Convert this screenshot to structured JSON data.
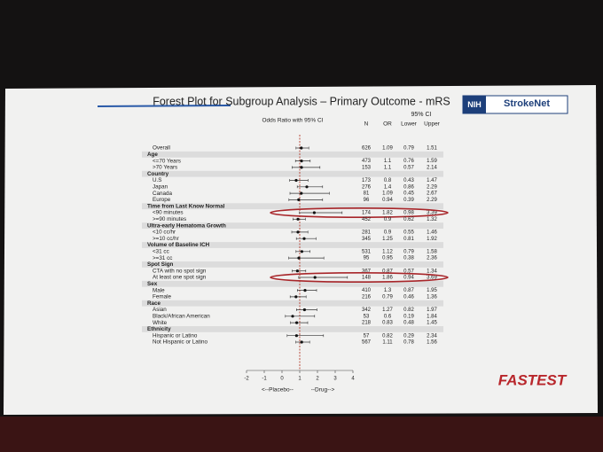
{
  "chart_data": {
    "type": "forest",
    "title": "Forest Plot for Subgroup Analysis – Primary Outcome - mRS",
    "axis_title": "Odds Ratio with 95% CI",
    "column_headers": {
      "n": "N",
      "or": "OR",
      "ci": "95% CI",
      "lower": "Lower",
      "upper": "Upper"
    },
    "x_left_label": "<--Placebo--",
    "x_right_label": "--Drug-->",
    "xlim": [
      -2,
      4
    ],
    "xticks": [
      -2,
      -1,
      0,
      1,
      2,
      3,
      4
    ],
    "reference_line": 1,
    "rows": [
      {
        "label": "Overall",
        "n": 626,
        "or": 1.09,
        "lower": 0.79,
        "upper": 1.51
      },
      {
        "label": "Age"
      },
      {
        "label": "<=70 Years",
        "n": 473,
        "or": 1.1,
        "lower": 0.76,
        "upper": 1.59
      },
      {
        "label": ">70 Years",
        "n": 153,
        "or": 1.1,
        "lower": 0.57,
        "upper": 2.14
      },
      {
        "label": "Country"
      },
      {
        "label": "U.S",
        "n": 173,
        "or": 0.8,
        "lower": 0.43,
        "upper": 1.47
      },
      {
        "label": "Japan",
        "n": 276,
        "or": 1.4,
        "lower": 0.86,
        "upper": 2.29
      },
      {
        "label": "Canada",
        "n": 81,
        "or": 1.09,
        "lower": 0.45,
        "upper": 2.67
      },
      {
        "label": "Europe",
        "n": 96,
        "or": 0.94,
        "lower": 0.39,
        "upper": 2.29
      },
      {
        "label": "Time from Last Know Normal"
      },
      {
        "label": "<90 minutes",
        "n": 174,
        "or": 1.82,
        "lower": 0.98,
        "upper": 3.39,
        "highlighted": true
      },
      {
        "label": ">=90 minutes",
        "n": 452,
        "or": 0.9,
        "lower": 0.62,
        "upper": 1.32
      },
      {
        "label": "Ultra-early Hematoma Growth"
      },
      {
        "label": "<10 cc/hr",
        "n": 281,
        "or": 0.9,
        "lower": 0.55,
        "upper": 1.46
      },
      {
        "label": ">=10 cc/hr",
        "n": 345,
        "or": 1.25,
        "lower": 0.81,
        "upper": 1.92
      },
      {
        "label": "Volume of Baseline ICH"
      },
      {
        "label": "<31 cc",
        "n": 531,
        "or": 1.12,
        "lower": 0.79,
        "upper": 1.58
      },
      {
        "label": ">=31 cc",
        "n": 95,
        "or": 0.95,
        "lower": 0.38,
        "upper": 2.36
      },
      {
        "label": "Spot Sign"
      },
      {
        "label": "CTA with no spot sign",
        "n": 367,
        "or": 0.87,
        "lower": 0.57,
        "upper": 1.34
      },
      {
        "label": "At least one spot sign",
        "n": 148,
        "or": 1.86,
        "lower": 0.94,
        "upper": 3.69,
        "highlighted": true
      },
      {
        "label": "Sex"
      },
      {
        "label": "Male",
        "n": 410,
        "or": 1.3,
        "lower": 0.87,
        "upper": 1.95
      },
      {
        "label": "Female",
        "n": 216,
        "or": 0.79,
        "lower": 0.46,
        "upper": 1.36
      },
      {
        "label": "Race"
      },
      {
        "label": "Asian",
        "n": 342,
        "or": 1.27,
        "lower": 0.82,
        "upper": 1.97
      },
      {
        "label": "Black/African American",
        "n": 53,
        "or": 0.6,
        "lower": 0.19,
        "upper": 1.84
      },
      {
        "label": "White",
        "n": 218,
        "or": 0.83,
        "lower": 0.48,
        "upper": 1.45
      },
      {
        "label": "Ethnicity"
      },
      {
        "label": "Hispanic or Latino",
        "n": 57,
        "or": 0.82,
        "lower": 0.29,
        "upper": 2.34
      },
      {
        "label": "Not Hispanic or Latino",
        "n": 567,
        "or": 1.11,
        "lower": 0.78,
        "upper": 1.56
      }
    ],
    "logos": {
      "nih": "NIH",
      "strokenet": "StrokeNet",
      "fastest": "FASTEST"
    }
  }
}
